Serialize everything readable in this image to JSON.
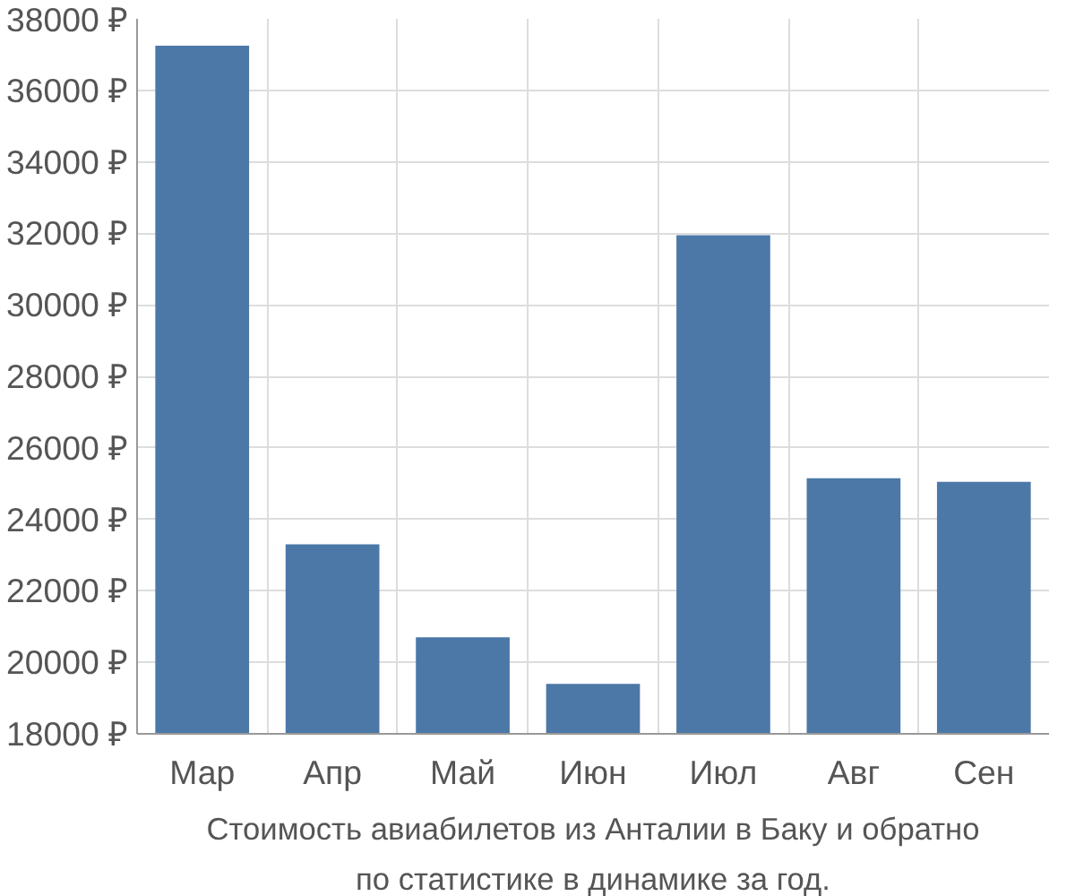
{
  "chart_data": {
    "type": "bar",
    "categories": [
      "Мар",
      "Апр",
      "Май",
      "Июн",
      "Июл",
      "Авг",
      "Сен"
    ],
    "values": [
      37250,
      23300,
      20700,
      19400,
      31950,
      25150,
      25050
    ],
    "color": "#4c78a8",
    "ylim": [
      18000,
      38000
    ],
    "yticks": [
      {
        "value": 18000,
        "label": "18000 ₽"
      },
      {
        "value": 20000,
        "label": "20000 ₽"
      },
      {
        "value": 22000,
        "label": "22000 ₽"
      },
      {
        "value": 24000,
        "label": "24000 ₽"
      },
      {
        "value": 26000,
        "label": "26000 ₽"
      },
      {
        "value": 28000,
        "label": "28000 ₽"
      },
      {
        "value": 30000,
        "label": "30000 ₽"
      },
      {
        "value": 32000,
        "label": "32000 ₽"
      },
      {
        "value": 34000,
        "label": "34000 ₽"
      },
      {
        "value": 36000,
        "label": "36000 ₽"
      },
      {
        "value": 38000,
        "label": "38000 ₽"
      }
    ],
    "grid": true,
    "annotations": [
      "Стоимость авиабилетов из Анталии в Баку и обратно",
      "по статистике в динамике за год."
    ]
  }
}
